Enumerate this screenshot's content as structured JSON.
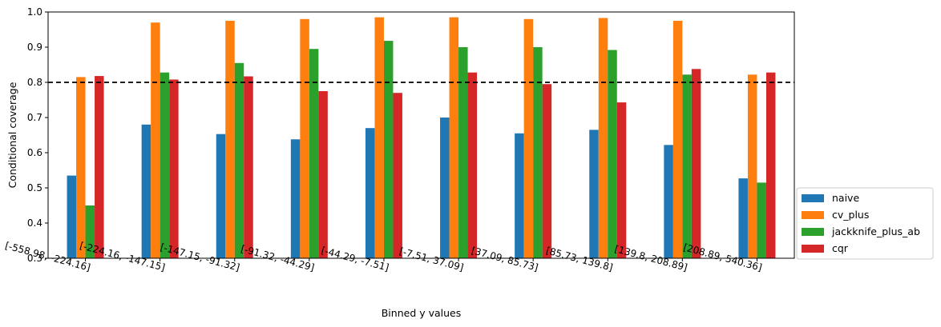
{
  "chart_data": {
    "type": "bar",
    "title": "",
    "xlabel": "Binned y values",
    "ylabel": "Conditional coverage",
    "ylim": [
      0.3,
      1.0
    ],
    "yticks": [
      "0.3",
      "0.4",
      "0.5",
      "0.6",
      "0.7",
      "0.8",
      "0.9",
      "1.0"
    ],
    "reference_line": {
      "y": 0.8,
      "style": "dashed",
      "color": "#000000"
    },
    "legend_position": "outside-right-bottom",
    "grid": false,
    "categories": [
      "[-558.98, -224.16]",
      "[-224.16, -147.15]",
      "[-147.15, -91.32]",
      "[-91.32, -44.29]",
      "[-44.29, -7.51]",
      "[-7.51, 37.09]",
      "[37.09, 85.73]",
      "[85.73, 139.8]",
      "[139.8, 208.89]",
      "[208.89, 540.36]"
    ],
    "series": [
      {
        "name": "naive",
        "color": "#1f77b4",
        "values": [
          0.535,
          0.68,
          0.653,
          0.638,
          0.67,
          0.7,
          0.655,
          0.665,
          0.622,
          0.527
        ]
      },
      {
        "name": "cv_plus",
        "color": "#ff7f0e",
        "values": [
          0.815,
          0.97,
          0.975,
          0.98,
          0.985,
          0.985,
          0.98,
          0.983,
          0.975,
          0.822
        ]
      },
      {
        "name": "jackknife_plus_ab",
        "color": "#2ca02c",
        "values": [
          0.45,
          0.828,
          0.855,
          0.895,
          0.918,
          0.9,
          0.9,
          0.892,
          0.822,
          0.515
        ]
      },
      {
        "name": "cqr",
        "color": "#d62728",
        "values": [
          0.818,
          0.808,
          0.817,
          0.775,
          0.77,
          0.828,
          0.795,
          0.743,
          0.838,
          0.828
        ]
      }
    ]
  }
}
